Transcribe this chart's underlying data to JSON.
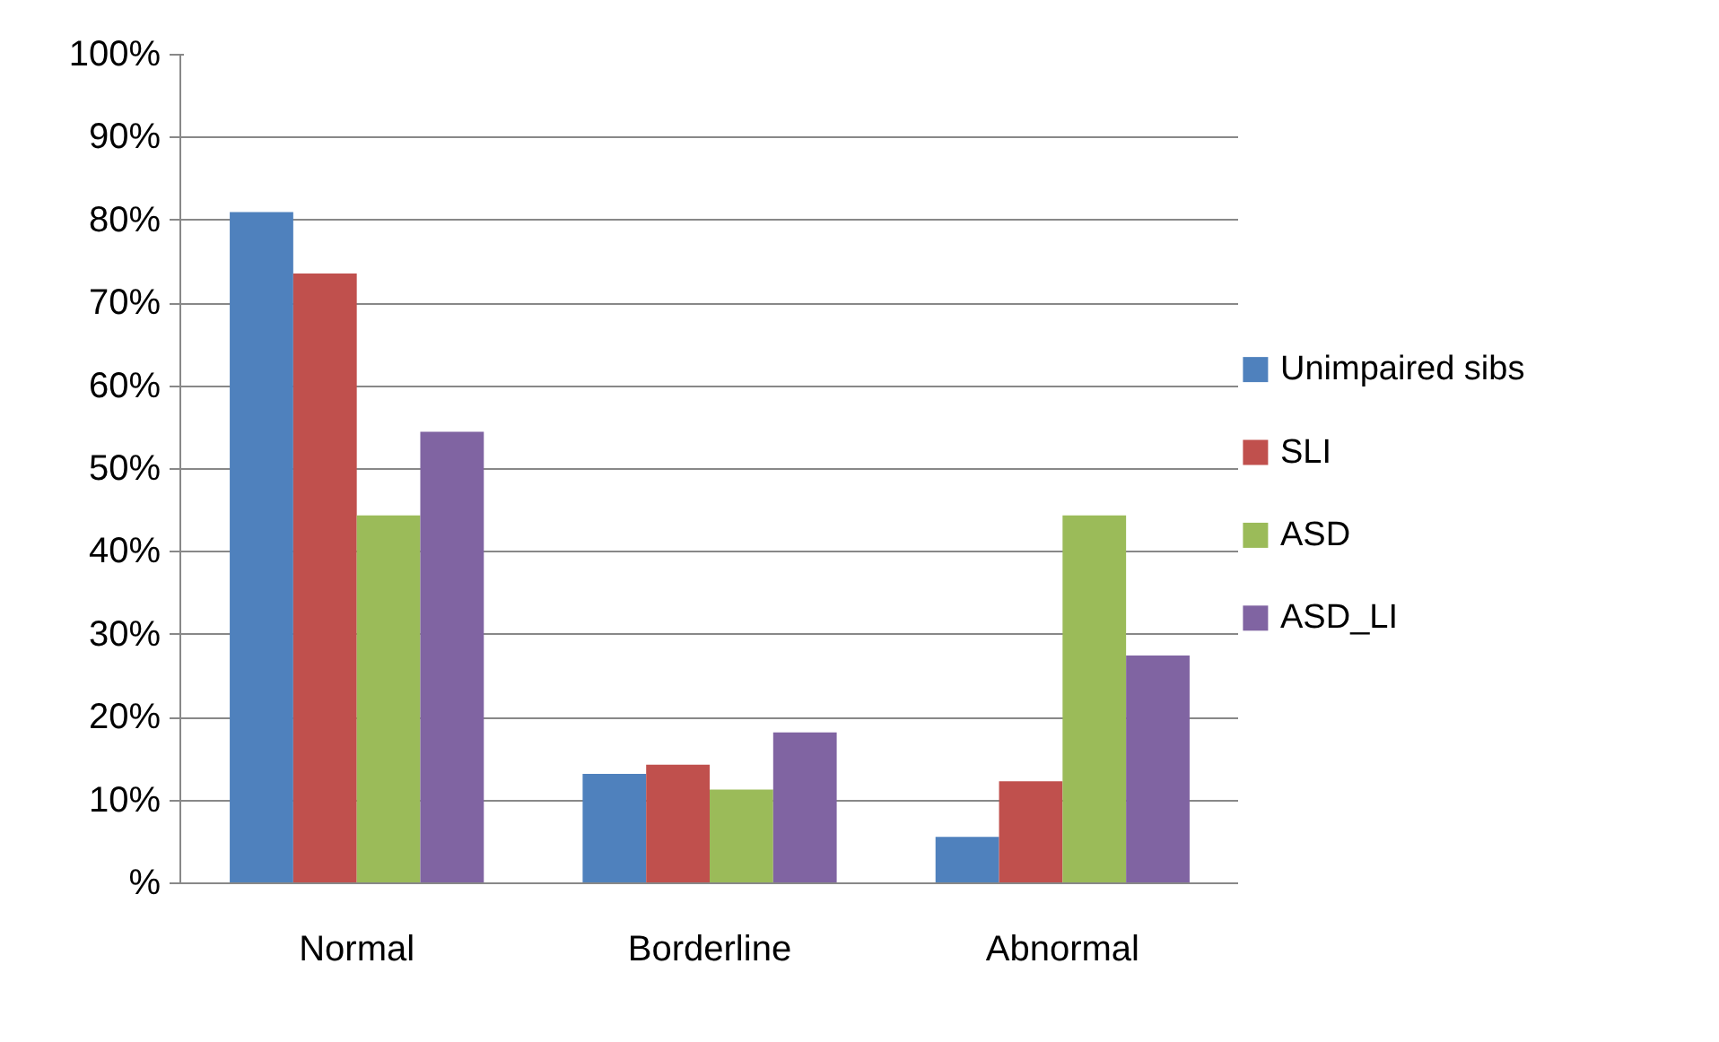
{
  "chart_data": {
    "type": "bar",
    "categories": [
      "Normal",
      "Borderline",
      "Abnormal"
    ],
    "series": [
      {
        "name": "Unimpaired sibs",
        "color": "#4f81bd",
        "values": [
          81.0,
          13.2,
          5.6
        ]
      },
      {
        "name": "SLI",
        "color": "#c0504d",
        "values": [
          73.6,
          14.3,
          12.3
        ]
      },
      {
        "name": "ASD",
        "color": "#9bbb59",
        "values": [
          44.4,
          11.3,
          44.4
        ]
      },
      {
        "name": "ASD_LI",
        "color": "#8064a2",
        "values": [
          54.5,
          18.2,
          27.5
        ]
      }
    ],
    "ylim": [
      0,
      100
    ],
    "yticks": [
      {
        "value": 0,
        "label": "%"
      },
      {
        "value": 10,
        "label": "10%"
      },
      {
        "value": 20,
        "label": "20%"
      },
      {
        "value": 30,
        "label": "30%"
      },
      {
        "value": 40,
        "label": "40%"
      },
      {
        "value": 50,
        "label": "50%"
      },
      {
        "value": 60,
        "label": "60%"
      },
      {
        "value": 70,
        "label": "70%"
      },
      {
        "value": 80,
        "label": "80%"
      },
      {
        "value": 90,
        "label": "90%"
      },
      {
        "value": 100,
        "label": "100%"
      }
    ],
    "grid": "y",
    "legend": "right"
  }
}
